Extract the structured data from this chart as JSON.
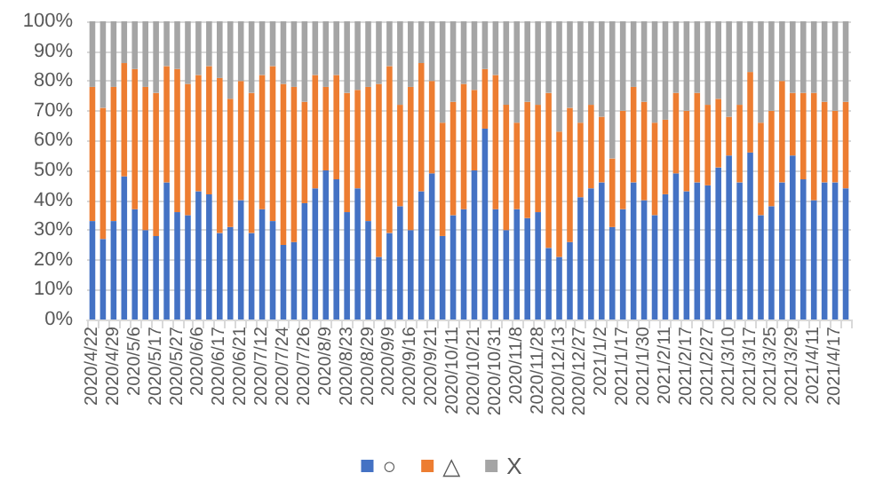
{
  "chart_data": {
    "type": "bar",
    "stacked": true,
    "grid": "y",
    "legend": "bottom",
    "categories": [
      "2020/4/22",
      null,
      "2020/4/29",
      null,
      "2020/5/6",
      null,
      "2020/5/17",
      null,
      "2020/5/27",
      null,
      "2020/6/6",
      null,
      "2020/6/17",
      null,
      "2020/6/21",
      null,
      "2020/7/12",
      null,
      "2020/7/24",
      null,
      "2020/7/26",
      null,
      "2020/8/9",
      null,
      "2020/8/23",
      null,
      "2020/8/29",
      null,
      "2020/9/9",
      null,
      "2020/9/16",
      null,
      "2020/9/21",
      null,
      "2020/10/11",
      null,
      "2020/10/21",
      null,
      "2020/10/31",
      null,
      "2020/11/8",
      null,
      "2020/11/28",
      null,
      "2020/12/13",
      null,
      "2020/12/27",
      null,
      "2021/1/2",
      null,
      "2021/1/17",
      null,
      "2021/1/30",
      null,
      "2021/2/11",
      null,
      "2021/2/17",
      null,
      "2021/2/27",
      null,
      "2021/3/10",
      null,
      "2021/3/17",
      null,
      "2021/3/25",
      null,
      "2021/3/29",
      null,
      "2021/4/11",
      null,
      "2021/4/17",
      null
    ],
    "ylim": [
      0,
      100
    ],
    "yticks": [
      {
        "value": 0,
        "label": "0%"
      },
      {
        "value": 10,
        "label": "10%"
      },
      {
        "value": 20,
        "label": "20%"
      },
      {
        "value": 30,
        "label": "30%"
      },
      {
        "value": 40,
        "label": "40%"
      },
      {
        "value": 50,
        "label": "50%"
      },
      {
        "value": 60,
        "label": "60%"
      },
      {
        "value": 70,
        "label": "70%"
      },
      {
        "value": 80,
        "label": "80%"
      },
      {
        "value": 90,
        "label": "90%"
      },
      {
        "value": 100,
        "label": "100%"
      }
    ],
    "series": [
      {
        "name": "○",
        "color": "#4472c4",
        "values": [
          33,
          27,
          33,
          48,
          37,
          30,
          28,
          46,
          36,
          35,
          43,
          42,
          29,
          31,
          40,
          29,
          37,
          33,
          25,
          26,
          39,
          44,
          50,
          47,
          36,
          44,
          33,
          21,
          29,
          38,
          30,
          43,
          49,
          28,
          35,
          37,
          50,
          64,
          37,
          30,
          37,
          34,
          36,
          24,
          21,
          26,
          41,
          44,
          46,
          31,
          37,
          46,
          40,
          35,
          42,
          49,
          43,
          46,
          45,
          51,
          55,
          46,
          56,
          35,
          38,
          46,
          55,
          47,
          40,
          46,
          46,
          44
        ]
      },
      {
        "name": "△",
        "color": "#ed7d31",
        "values": [
          45,
          44,
          45,
          38,
          47,
          48,
          48,
          39,
          48,
          44,
          39,
          43,
          52,
          43,
          40,
          47,
          45,
          52,
          54,
          52,
          34,
          38,
          28,
          35,
          40,
          33,
          45,
          58,
          56,
          34,
          48,
          43,
          31,
          38,
          38,
          42,
          27,
          20,
          45,
          42,
          29,
          39,
          36,
          52,
          42,
          45,
          25,
          28,
          22,
          23,
          33,
          32,
          33,
          31,
          25,
          27,
          27,
          30,
          27,
          23,
          13,
          26,
          27,
          31,
          32,
          34,
          21,
          29,
          36,
          27,
          24,
          29
        ]
      },
      {
        "name": "X",
        "color": "#a5a5a5",
        "values": [
          22,
          29,
          22,
          14,
          16,
          22,
          24,
          15,
          16,
          21,
          18,
          15,
          19,
          26,
          20,
          24,
          18,
          15,
          21,
          22,
          27,
          18,
          22,
          18,
          24,
          23,
          22,
          21,
          15,
          28,
          22,
          14,
          20,
          34,
          27,
          21,
          23,
          16,
          18,
          28,
          34,
          27,
          28,
          24,
          37,
          29,
          34,
          28,
          32,
          46,
          30,
          22,
          27,
          34,
          33,
          24,
          30,
          24,
          28,
          26,
          32,
          28,
          17,
          34,
          30,
          20,
          24,
          24,
          24,
          27,
          30,
          27
        ]
      }
    ]
  }
}
